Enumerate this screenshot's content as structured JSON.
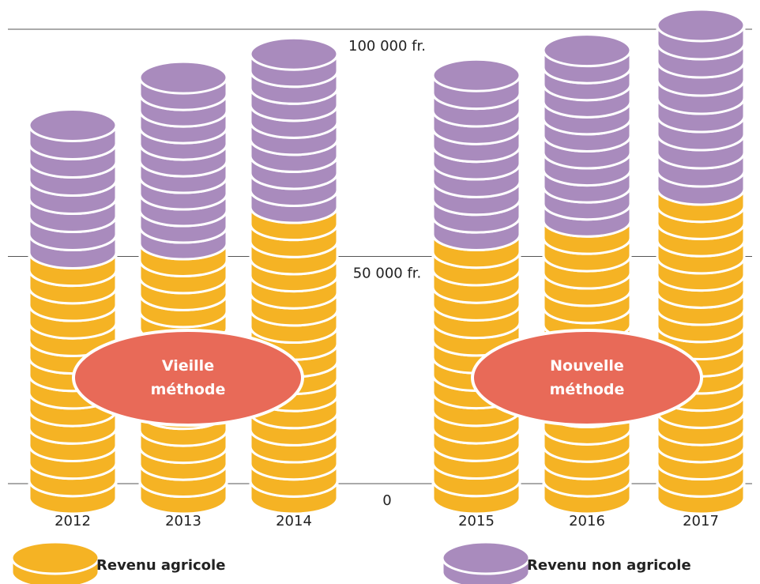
{
  "chart_data": {
    "type": "bar",
    "stacked": true,
    "categories": [
      "2012",
      "2013",
      "2014",
      "2015",
      "2016",
      "2017"
    ],
    "series": [
      {
        "name": "Revenu agricole",
        "color": "#f5b324",
        "values": [
          54000,
          56000,
          64000,
          58000,
          61000,
          68000
        ]
      },
      {
        "name": "Revenu non agricole",
        "color": "#a98bbd",
        "values": [
          28000,
          36500,
          33700,
          35000,
          37500,
          36000
        ]
      }
    ],
    "ylim": [
      0,
      100000
    ],
    "yticks": [
      0,
      {
        "value": 50000,
        "label": "50 000 fr."
      },
      {
        "value": 100000,
        "label": "100 000 fr."
      }
    ],
    "grid": true,
    "annotations": [
      "Vieille méthode",
      "Nouvelle méthode"
    ],
    "annotation_color": "#e86a58"
  }
}
